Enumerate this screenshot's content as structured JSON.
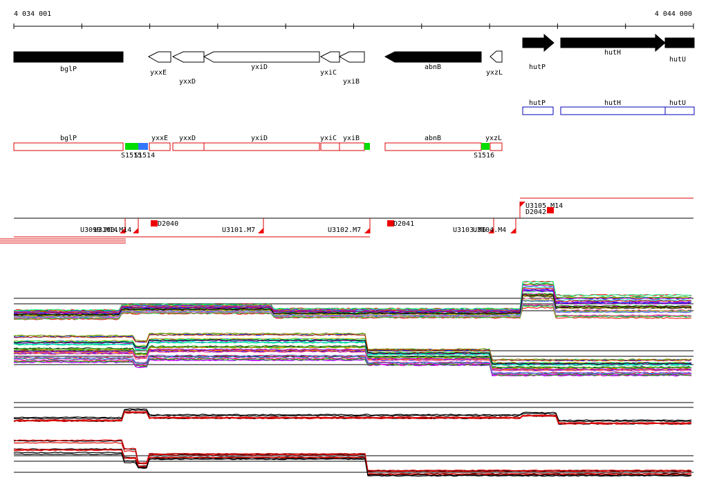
{
  "ruler": {
    "start_label": "4 034 001",
    "end_label": "4 044 000"
  },
  "genes_top": [
    {
      "label": "bglP",
      "strand": "+",
      "filled": true
    },
    {
      "label": "yxxE",
      "strand": "-",
      "filled": false
    },
    {
      "label": "yxxD",
      "strand": "-",
      "filled": false
    },
    {
      "label": "yxiD",
      "strand": "-",
      "filled": false
    },
    {
      "label": "yxiC",
      "strand": "-",
      "filled": false
    },
    {
      "label": "yxiB",
      "strand": "-",
      "filled": false
    },
    {
      "label": "abnB",
      "strand": "-",
      "filled": true
    },
    {
      "label": "yxzL",
      "strand": "-",
      "filled": false
    },
    {
      "label": "hutP",
      "strand": "+",
      "filled": true
    },
    {
      "label": "hutH",
      "strand": "+",
      "filled": true
    },
    {
      "label": "hutU",
      "strand": "+",
      "filled": true
    }
  ],
  "blue_boxes": [
    "hutP",
    "hutH",
    "hutU"
  ],
  "red_boxes": [
    "bglP",
    "yxxE",
    "yxxD",
    "yxiD",
    "yxiC",
    "yxiB",
    "abnB",
    "yxzL"
  ],
  "segments": [
    {
      "label": "S1515",
      "color": "#00dd00"
    },
    {
      "label": "S1514",
      "color": "#3377ff"
    },
    {
      "label": "",
      "color": "#00dd00"
    },
    {
      "label": "S1516",
      "color": "#00dd00"
    }
  ],
  "upshifts": [
    {
      "label": "U3099.M14"
    },
    {
      "label": "U3100.M14"
    },
    {
      "label": "U3101.M7"
    },
    {
      "label": "U3102.M7"
    },
    {
      "label": "U3103.M6"
    },
    {
      "label": "U3104.M4"
    },
    {
      "label": "U3105.M14"
    }
  ],
  "downshifts": [
    {
      "label": "D2040"
    },
    {
      "label": "D2041"
    },
    {
      "label": "D2042"
    }
  ],
  "colors": {
    "gene_fill": "#000000",
    "box_red": "#dd0000",
    "box_blue": "#0000bb",
    "marker_red": "#ee0000"
  }
}
